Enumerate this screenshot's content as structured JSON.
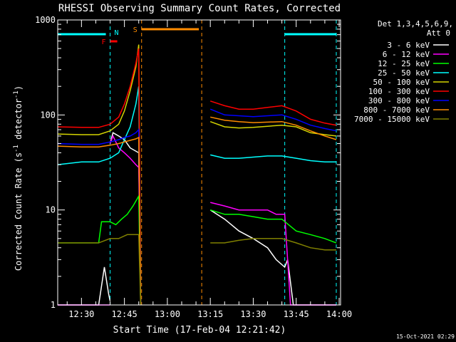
{
  "chart_data": {
    "type": "line",
    "title": "RHESSI Observing Summary Count Rates, Corrected",
    "xlabel": "Start Time (17-Feb-04 12:21:42)",
    "ylabel": "Corrected Count Rate (s",
    "ylabel_sup1": "-1",
    "ylabel_mid": " detector",
    "ylabel_sup2": "-1",
    "ylabel_end": ")",
    "y_scale": "log",
    "ylim": [
      1,
      1000
    ],
    "xlim": [
      "12:21:42",
      "14:00:30"
    ],
    "x_ticks": [
      "12:30",
      "12:45",
      "13:00",
      "13:15",
      "13:30",
      "13:45",
      "14:00"
    ],
    "y_ticks": [
      "1",
      "10",
      "100",
      "1000"
    ],
    "footer_date": "15-Oct-2021 02:29",
    "legend": {
      "header1": "Det 1,3,4,5,6,9,",
      "header2": "Att 0",
      "placement": "right"
    },
    "flags": [
      {
        "label": "F",
        "color": "#ff0000",
        "start": "12:40:00",
        "end": "12:42:30"
      },
      {
        "label": "N",
        "color": "#00ffff",
        "start": "12:21:42",
        "end": "12:41:00"
      },
      {
        "label": "S",
        "color": "#ff8c00",
        "start": "12:51:00",
        "end": "13:11:00"
      }
    ],
    "region_lines": [
      {
        "time": "12:40:00",
        "color": "#00ffff"
      },
      {
        "time": "12:51:00",
        "color": "#ff8c00"
      },
      {
        "time": "13:12:00",
        "color": "#ff8c00"
      },
      {
        "time": "13:41:00",
        "color": "#00ffff"
      },
      {
        "time": "13:59:00",
        "color": "#00ffff"
      }
    ],
    "series": [
      {
        "name": "3 - 6 keV",
        "color": "#ffffff",
        "segments": [
          [
            [
              "12:21:42",
              1.0
            ],
            [
              "12:30:00",
              1.0
            ],
            [
              "12:36:00",
              1.0
            ],
            [
              "12:38:00",
              2.5
            ],
            [
              "12:39:30",
              1.3
            ],
            [
              "12:40:00",
              1.1
            ]
          ],
          [
            [
              "12:40:00",
              50
            ],
            [
              "12:41:00",
              65
            ],
            [
              "12:43:00",
              60
            ],
            [
              "12:45:00",
              55
            ],
            [
              "12:47:00",
              45
            ],
            [
              "12:50:00",
              40
            ],
            [
              "12:50:40",
              1.0
            ]
          ],
          [
            [
              "13:15:00",
              10
            ],
            [
              "13:20:00",
              8
            ],
            [
              "13:25:00",
              6
            ],
            [
              "13:30:00",
              5
            ],
            [
              "13:35:00",
              4
            ],
            [
              "13:38:00",
              3
            ],
            [
              "13:41:00",
              2.5
            ],
            [
              "13:42:00",
              3
            ],
            [
              "13:44:00",
              1.0
            ],
            [
              "13:59:00",
              1.0
            ]
          ]
        ]
      },
      {
        "name": "6 - 12 keV",
        "color": "#ff00ff",
        "segments": [
          [
            [
              "12:21:42",
              1.0
            ],
            [
              "12:38:00",
              1.0
            ],
            [
              "12:40:00",
              1.0
            ]
          ],
          [
            [
              "12:40:00",
              50
            ],
            [
              "12:41:00",
              60
            ],
            [
              "12:43:00",
              45
            ],
            [
              "12:45:00",
              40
            ],
            [
              "12:47:00",
              35
            ],
            [
              "12:49:00",
              30
            ],
            [
              "12:50:00",
              28
            ],
            [
              "12:50:40",
              1.0
            ]
          ],
          [
            [
              "13:15:00",
              12
            ],
            [
              "13:20:00",
              11
            ],
            [
              "13:25:00",
              10
            ],
            [
              "13:30:00",
              10
            ],
            [
              "13:35:00",
              10
            ],
            [
              "13:38:00",
              9
            ],
            [
              "13:41:00",
              9
            ],
            [
              "13:43:00",
              1.0
            ],
            [
              "13:59:00",
              1.0
            ]
          ]
        ]
      },
      {
        "name": "12 - 25 keV",
        "color": "#00ff00",
        "segments": [
          [
            [
              "12:21:42",
              4.5
            ],
            [
              "12:30:00",
              4.5
            ],
            [
              "12:36:00",
              4.5
            ],
            [
              "12:37:00",
              7.5
            ],
            [
              "12:40:00",
              7.5
            ],
            [
              "12:42:00",
              7
            ],
            [
              "12:44:00",
              8
            ],
            [
              "12:46:00",
              9
            ],
            [
              "12:48:00",
              11
            ],
            [
              "12:50:00",
              14
            ],
            [
              "12:50:40",
              1.0
            ]
          ],
          [
            [
              "13:15:00",
              10
            ],
            [
              "13:20:00",
              9
            ],
            [
              "13:25:00",
              9
            ],
            [
              "13:30:00",
              8.5
            ],
            [
              "13:35:00",
              8
            ],
            [
              "13:40:00",
              8
            ],
            [
              "13:45:00",
              6
            ],
            [
              "13:50:00",
              5.5
            ],
            [
              "13:55:00",
              5
            ],
            [
              "13:59:00",
              4.5
            ]
          ]
        ]
      },
      {
        "name": "25 - 50 keV",
        "color": "#00ffff",
        "segments": [
          [
            [
              "12:21:42",
              30
            ],
            [
              "12:30:00",
              32
            ],
            [
              "12:36:00",
              32
            ],
            [
              "12:40:00",
              35
            ],
            [
              "12:43:00",
              40
            ],
            [
              "12:45:00",
              55
            ],
            [
              "12:47:00",
              75
            ],
            [
              "12:49:00",
              130
            ],
            [
              "12:50:00",
              200
            ],
            [
              "12:50:40",
              1.0
            ]
          ],
          [
            [
              "13:15:00",
              38
            ],
            [
              "13:20:00",
              35
            ],
            [
              "13:25:00",
              35
            ],
            [
              "13:30:00",
              36
            ],
            [
              "13:35:00",
              37
            ],
            [
              "13:40:00",
              37
            ],
            [
              "13:45:00",
              35
            ],
            [
              "13:50:00",
              33
            ],
            [
              "13:55:00",
              32
            ],
            [
              "13:59:00",
              32
            ]
          ]
        ]
      },
      {
        "name": "50 - 100 keV",
        "color": "#d4d400",
        "segments": [
          [
            [
              "12:21:42",
              63
            ],
            [
              "12:30:00",
              62
            ],
            [
              "12:36:00",
              62
            ],
            [
              "12:40:00",
              68
            ],
            [
              "12:43:00",
              80
            ],
            [
              "12:45:00",
              110
            ],
            [
              "12:47:00",
              180
            ],
            [
              "12:49:00",
              320
            ],
            [
              "12:50:00",
              550
            ],
            [
              "12:50:40",
              1.0
            ]
          ],
          [
            [
              "13:15:00",
              85
            ],
            [
              "13:20:00",
              75
            ],
            [
              "13:25:00",
              73
            ],
            [
              "13:30:00",
              74
            ],
            [
              "13:35:00",
              76
            ],
            [
              "13:40:00",
              78
            ],
            [
              "13:45:00",
              75
            ],
            [
              "13:50:00",
              65
            ],
            [
              "13:55:00",
              62
            ],
            [
              "13:59:00",
              60
            ]
          ]
        ]
      },
      {
        "name": "100 - 300 keV",
        "color": "#ff0000",
        "segments": [
          [
            [
              "12:21:42",
              75
            ],
            [
              "12:30:00",
              74
            ],
            [
              "12:36:00",
              74
            ],
            [
              "12:40:00",
              80
            ],
            [
              "12:43:00",
              95
            ],
            [
              "12:45:00",
              130
            ],
            [
              "12:47:00",
              200
            ],
            [
              "12:49:00",
              350
            ],
            [
              "12:50:00",
              500
            ],
            [
              "12:50:40",
              1.0
            ]
          ],
          [
            [
              "13:15:00",
              140
            ],
            [
              "13:20:00",
              125
            ],
            [
              "13:25:00",
              115
            ],
            [
              "13:30:00",
              115
            ],
            [
              "13:35:00",
              120
            ],
            [
              "13:40:00",
              125
            ],
            [
              "13:45:00",
              110
            ],
            [
              "13:50:00",
              90
            ],
            [
              "13:55:00",
              82
            ],
            [
              "13:59:00",
              78
            ]
          ]
        ]
      },
      {
        "name": "300 - 800 keV",
        "color": "#0000ff",
        "segments": [
          [
            [
              "12:21:42",
              50
            ],
            [
              "12:30:00",
              49
            ],
            [
              "12:36:00",
              49
            ],
            [
              "12:40:00",
              52
            ],
            [
              "12:43:00",
              55
            ],
            [
              "12:45:00",
              58
            ],
            [
              "12:47:00",
              60
            ],
            [
              "12:49:00",
              65
            ],
            [
              "12:50:00",
              70
            ],
            [
              "12:50:40",
              1.0
            ]
          ],
          [
            [
              "13:15:00",
              115
            ],
            [
              "13:20:00",
              100
            ],
            [
              "13:25:00",
              98
            ],
            [
              "13:30:00",
              96
            ],
            [
              "13:35:00",
              98
            ],
            [
              "13:40:00",
              100
            ],
            [
              "13:45:00",
              90
            ],
            [
              "13:50:00",
              78
            ],
            [
              "13:55:00",
              72
            ],
            [
              "13:59:00",
              68
            ]
          ]
        ]
      },
      {
        "name": "800 - 7000 keV",
        "color": "#ff8c00",
        "segments": [
          [
            [
              "12:21:42",
              47
            ],
            [
              "12:30:00",
              46
            ],
            [
              "12:36:00",
              46
            ],
            [
              "12:40:00",
              48
            ],
            [
              "12:43:00",
              50
            ],
            [
              "12:45:00",
              52
            ],
            [
              "12:47:00",
              54
            ],
            [
              "12:49:00",
              56
            ],
            [
              "12:50:00",
              58
            ],
            [
              "12:50:40",
              1.0
            ]
          ],
          [
            [
              "13:15:00",
              95
            ],
            [
              "13:20:00",
              88
            ],
            [
              "13:25:00",
              85
            ],
            [
              "13:30:00",
              83
            ],
            [
              "13:35:00",
              84
            ],
            [
              "13:40:00",
              85
            ],
            [
              "13:45:00",
              78
            ],
            [
              "13:50:00",
              68
            ],
            [
              "13:55:00",
              60
            ],
            [
              "13:59:00",
              55
            ]
          ]
        ]
      },
      {
        "name": "7000 - 15000 keV",
        "color": "#808000",
        "segments": [
          [
            [
              "12:21:42",
              4.5
            ],
            [
              "12:30:00",
              4.5
            ],
            [
              "12:36:00",
              4.5
            ],
            [
              "12:40:00",
              5
            ],
            [
              "12:43:00",
              5
            ],
            [
              "12:46:00",
              5.5
            ],
            [
              "12:50:00",
              5.5
            ],
            [
              "12:50:40",
              1.0
            ]
          ],
          [
            [
              "13:15:00",
              4.5
            ],
            [
              "13:20:00",
              4.5
            ],
            [
              "13:25:00",
              4.8
            ],
            [
              "13:30:00",
              5
            ],
            [
              "13:35:00",
              5
            ],
            [
              "13:40:00",
              5
            ],
            [
              "13:45:00",
              4.5
            ],
            [
              "13:50:00",
              4
            ],
            [
              "13:55:00",
              3.8
            ],
            [
              "13:59:00",
              3.8
            ]
          ]
        ]
      }
    ]
  }
}
